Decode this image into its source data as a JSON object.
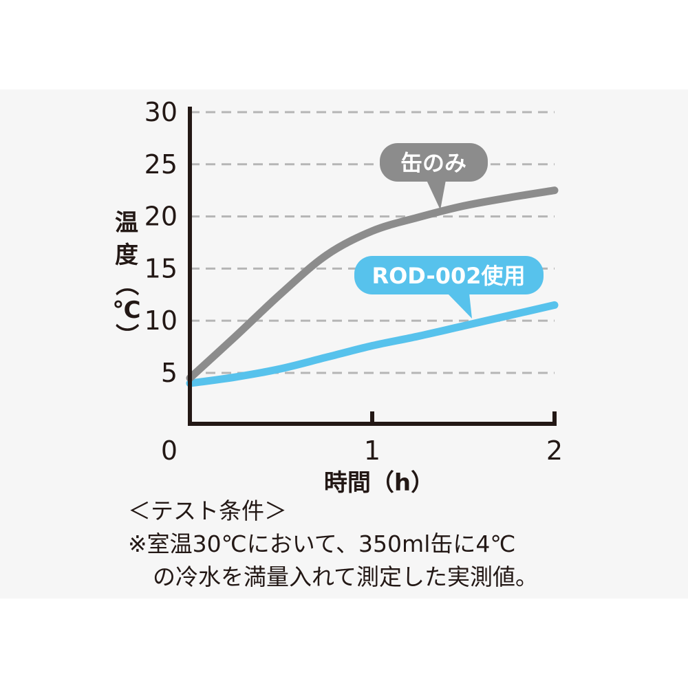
{
  "chart_data": {
    "type": "line",
    "xlabel": "時間（h）",
    "ylabel_chars": [
      "温",
      "度",
      "（",
      "℃",
      "）"
    ],
    "x_ticks": [
      0,
      1,
      2
    ],
    "y_ticks": [
      5,
      10,
      15,
      20,
      25,
      30
    ],
    "xlim": [
      0,
      2
    ],
    "ylim": [
      1.5,
      30
    ],
    "grid": "horizontal-dashed",
    "series": [
      {
        "name": "缶のみ",
        "color": "#8c8c8c",
        "x": [
          0,
          0.25,
          0.5,
          0.75,
          1.0,
          1.25,
          1.5,
          1.75,
          2.0
        ],
        "y": [
          4.5,
          8.5,
          12.6,
          16.3,
          18.6,
          19.9,
          21.0,
          21.8,
          22.5
        ]
      },
      {
        "name": "ROD-002使用",
        "color": "#57c2ec",
        "x": [
          0,
          0.25,
          0.5,
          0.75,
          1.0,
          1.25,
          1.5,
          1.75,
          2.0
        ],
        "y": [
          4.0,
          4.6,
          5.4,
          6.5,
          7.6,
          8.5,
          9.5,
          10.5,
          11.5
        ]
      }
    ]
  },
  "notes": {
    "heading": "＜テスト条件＞",
    "line1": "※室温30℃において、350ml缶に4℃",
    "line2": "の冷水を満量入れて測定した実測値。"
  }
}
